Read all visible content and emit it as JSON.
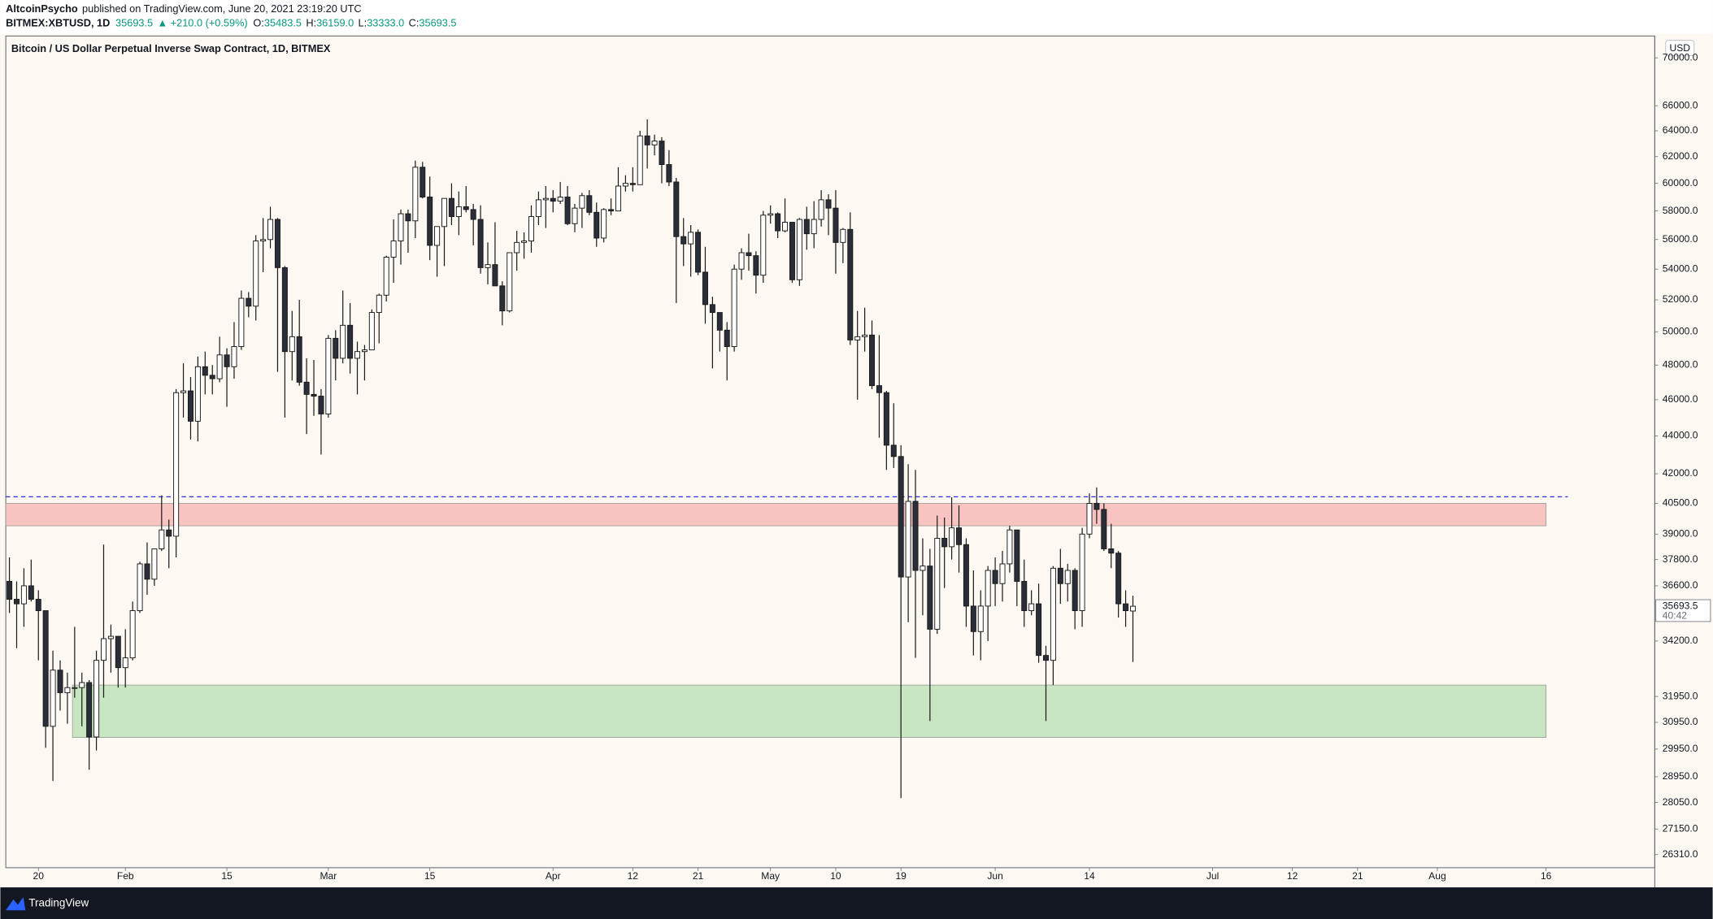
{
  "header": {
    "author": "AltcoinPsycho",
    "published": "published on TradingView.com, June 20, 2021 23:19:20 UTC",
    "symbol": "BITMEX:XBTUSD, 1D",
    "last": "35693.5",
    "change": "▲ +210.0 (+0.59%)",
    "o_key": "O:",
    "o": "35483.5",
    "h_key": "H:",
    "h": "36159.0",
    "l_key": "L:",
    "l": "33333.0",
    "c_key": "C:",
    "c": "35693.5"
  },
  "footer": {
    "brand": "TradingView"
  },
  "chart_data": {
    "type": "candlestick",
    "title": "Bitcoin / US Dollar Perpetual Inverse Swap Contract, 1D, BITMEX",
    "currency": "USD",
    "log_scale": true,
    "grid": false,
    "up_color": "#ffffff",
    "down_color": "#2a2e39",
    "wick_color": "#1a1a1a",
    "last_price_label": "35693.5",
    "countdown": "40:42",
    "xlim": [
      -0.5,
      227
    ],
    "ylim": [
      25890,
      71900
    ],
    "xticks": [
      {
        "value": 4,
        "label": "20"
      },
      {
        "value": 16,
        "label": "Feb"
      },
      {
        "value": 30,
        "label": "15"
      },
      {
        "value": 44,
        "label": "Mar"
      },
      {
        "value": 58,
        "label": "15"
      },
      {
        "value": 75,
        "label": "Apr"
      },
      {
        "value": 86,
        "label": "12"
      },
      {
        "value": 95,
        "label": "21"
      },
      {
        "value": 105,
        "label": "May"
      },
      {
        "value": 114,
        "label": "10"
      },
      {
        "value": 123,
        "label": "19"
      },
      {
        "value": 136,
        "label": "Jun"
      },
      {
        "value": 149,
        "label": "14"
      },
      {
        "value": 166,
        "label": "Jul"
      },
      {
        "value": 177,
        "label": "12"
      },
      {
        "value": 186,
        "label": "21"
      },
      {
        "value": 197,
        "label": "Aug"
      },
      {
        "value": 212,
        "label": "16"
      }
    ],
    "yticks": [
      {
        "value": 70000,
        "label": "70000.0"
      },
      {
        "value": 66000,
        "label": "66000.0"
      },
      {
        "value": 64000,
        "label": "64000.0"
      },
      {
        "value": 62000,
        "label": "62000.0"
      },
      {
        "value": 60000,
        "label": "60000.0"
      },
      {
        "value": 58000,
        "label": "58000.0"
      },
      {
        "value": 56000,
        "label": "56000.0"
      },
      {
        "value": 54000,
        "label": "54000.0"
      },
      {
        "value": 52000,
        "label": "52000.0"
      },
      {
        "value": 50000,
        "label": "50000.0"
      },
      {
        "value": 48000,
        "label": "48000.0"
      },
      {
        "value": 46000,
        "label": "46000.0"
      },
      {
        "value": 44000,
        "label": "44000.0"
      },
      {
        "value": 42000,
        "label": "42000.0"
      },
      {
        "value": 40500,
        "label": "40500.0"
      },
      {
        "value": 39000,
        "label": "39000.0"
      },
      {
        "value": 37800,
        "label": "37800.0"
      },
      {
        "value": 36600,
        "label": "36600.0"
      },
      {
        "value": 34200,
        "label": "34200.0"
      },
      {
        "value": 31950,
        "label": "31950.0"
      },
      {
        "value": 30950,
        "label": "30950.0"
      },
      {
        "value": 29950,
        "label": "29950.0"
      },
      {
        "value": 28950,
        "label": "28950.0"
      },
      {
        "value": 28050,
        "label": "28050.0"
      },
      {
        "value": 27150,
        "label": "27150.0"
      },
      {
        "value": 26310,
        "label": "26310.0"
      }
    ],
    "zones": [
      {
        "x": [
          -0.5,
          212
        ],
        "y": [
          39400,
          40500
        ],
        "color": "#f8c4c1"
      },
      {
        "x": [
          8.7,
          212
        ],
        "y": [
          30380,
          32400
        ],
        "color": "#c8e6c2"
      }
    ],
    "hline": {
      "value": 40830,
      "x": [
        -0.5,
        215
      ],
      "color": "#2f2fd8"
    },
    "open": [
      36800,
      36000,
      35800,
      36600,
      36000,
      35500,
      30800,
      33000,
      32100,
      32300,
      32300,
      32500,
      30400,
      33400,
      34300,
      34400,
      33100,
      33500,
      35500,
      37600,
      36900,
      38300,
      39200,
      38900,
      46400,
      46500,
      44800,
      47900,
      47400,
      47200,
      48600,
      47900,
      49100,
      52100,
      51600,
      55900,
      56000,
      57400,
      54100,
      48800,
      49700,
      47000,
      46300,
      46200,
      45200,
      49600,
      48400,
      50400,
      48400,
      48800,
      48900,
      51200,
      52300,
      54800,
      55900,
      57800,
      57300,
      61200,
      59000,
      55600,
      56900,
      58900,
      57600,
      58300,
      58100,
      57400,
      54100,
      54300,
      52900,
      51300,
      55100,
      55800,
      55900,
      57600,
      58800,
      58900,
      58700,
      59000,
      57100,
      58200,
      59100,
      57900,
      56100,
      58100,
      58000,
      59800,
      60000,
      59900,
      63600,
      62900,
      63200,
      61400,
      60100,
      56200,
      55700,
      56500,
      53800,
      51700,
      51200,
      50100,
      49100,
      54000,
      55100,
      54900,
      53600,
      57700,
      57800,
      56600,
      57200,
      53300,
      57400,
      56400,
      57400,
      58800,
      58200,
      55800,
      56700,
      49500,
      49700,
      49800,
      46800,
      46400,
      43500,
      42900,
      37000,
      40600,
      37300,
      37500,
      34700,
      38800,
      38400,
      39300,
      38500,
      35700,
      34600,
      35700,
      37300,
      36700,
      37600,
      39200,
      36800,
      35500,
      35800,
      33600,
      33400,
      37400,
      36700,
      37300,
      35500,
      39000,
      40500,
      40200,
      38300,
      38100,
      35800,
      35483.5
    ],
    "high": [
      37900,
      36800,
      37400,
      37800,
      36400,
      35500,
      33800,
      33400,
      32900,
      34800,
      32900,
      32600,
      33800,
      38500,
      34900,
      34400,
      34700,
      35900,
      37700,
      38600,
      38300,
      40900,
      39700,
      46600,
      48100,
      47300,
      48500,
      48800,
      48000,
      49700,
      49000,
      50600,
      52600,
      52500,
      56300,
      57500,
      58300,
      57500,
      54200,
      51300,
      52000,
      48400,
      48300,
      46600,
      49800,
      50100,
      52600,
      51800,
      49400,
      49200,
      51400,
      52400,
      54900,
      57400,
      58100,
      58100,
      61700,
      61600,
      60500,
      56900,
      58900,
      60000,
      59400,
      59800,
      58500,
      58400,
      55800,
      57200,
      53200,
      55100,
      56600,
      56500,
      58400,
      59400,
      59800,
      59500,
      60100,
      59800,
      58500,
      59300,
      59500,
      58600,
      58200,
      58900,
      61200,
      60600,
      61200,
      64000,
      64900,
      63700,
      63500,
      62500,
      60400,
      57500,
      57000,
      56700,
      55500,
      52200,
      51200,
      50600,
      54300,
      55400,
      56400,
      55200,
      58000,
      58400,
      57900,
      58900,
      57200,
      57500,
      58300,
      58700,
      59500,
      59200,
      59500,
      56800,
      57900,
      51300,
      51500,
      50700,
      49800,
      46500,
      45800,
      43500,
      42500,
      42200,
      38800,
      38300,
      39900,
      39800,
      40800,
      40400,
      38800,
      37300,
      36400,
      37500,
      37900,
      38200,
      39400,
      39200,
      37800,
      36400,
      36700,
      34000,
      37500,
      38300,
      37600,
      37400,
      39300,
      41000,
      41300,
      40500,
      39500,
      38200,
      36400,
      36159
    ],
    "low": [
      35400,
      33900,
      34800,
      35900,
      33400,
      30000,
      28800,
      31400,
      30900,
      31900,
      30800,
      29200,
      29900,
      31900,
      32900,
      32300,
      32300,
      33400,
      35400,
      36200,
      36600,
      38200,
      37400,
      37900,
      45000,
      43800,
      43700,
      46300,
      46300,
      47000,
      45600,
      47200,
      48900,
      50900,
      50700,
      53800,
      55400,
      47600,
      45000,
      47100,
      46800,
      44100,
      45100,
      43000,
      45000,
      47100,
      48100,
      47500,
      46300,
      47100,
      48900,
      49300,
      51900,
      53100,
      54300,
      55100,
      56100,
      58900,
      54600,
      53500,
      54200,
      57000,
      56300,
      57900,
      55600,
      53700,
      53000,
      52900,
      50400,
      51200,
      53900,
      54700,
      55100,
      57000,
      56800,
      57900,
      58500,
      57000,
      56500,
      56800,
      57700,
      55500,
      55800,
      57700,
      58000,
      59400,
      59400,
      59900,
      61100,
      62100,
      60000,
      59800,
      51800,
      54200,
      53500,
      53600,
      50500,
      47800,
      48800,
      47100,
      48800,
      53300,
      53900,
      52400,
      53100,
      57100,
      56100,
      56500,
      53100,
      52900,
      55300,
      55400,
      56900,
      56300,
      53700,
      54400,
      49200,
      46000,
      48800,
      46600,
      43900,
      42200,
      42300,
      28200,
      35000,
      33500,
      35300,
      31000,
      34500,
      36500,
      37800,
      37200,
      34800,
      33600,
      33400,
      34200,
      35700,
      35900,
      37200,
      35700,
      34800,
      35300,
      33300,
      31000,
      32400,
      35800,
      35900,
      34700,
      34800,
      38800,
      39500,
      38200,
      37400,
      35200,
      34800,
      33333
    ],
    "close": [
      36000,
      35800,
      36600,
      36000,
      35500,
      30800,
      33000,
      32100,
      32300,
      32300,
      32500,
      30400,
      33400,
      34300,
      34400,
      33100,
      33500,
      35500,
      37600,
      36900,
      38300,
      39200,
      38900,
      46400,
      46500,
      44800,
      47900,
      47400,
      47200,
      48600,
      47900,
      49100,
      52100,
      51600,
      55900,
      56000,
      57400,
      54100,
      48800,
      49700,
      47000,
      46300,
      46200,
      45200,
      49600,
      48400,
      50400,
      48400,
      48800,
      48900,
      51200,
      52300,
      54800,
      55900,
      57800,
      57300,
      61200,
      59000,
      55600,
      56900,
      58900,
      57600,
      58300,
      58100,
      57400,
      54100,
      54300,
      52900,
      51300,
      55100,
      55800,
      55900,
      57600,
      58800,
      58900,
      58700,
      59000,
      57100,
      58200,
      59100,
      57900,
      56100,
      58100,
      58000,
      59800,
      60000,
      59900,
      63600,
      62900,
      63200,
      61400,
      60100,
      56200,
      55700,
      56500,
      53800,
      51700,
      51200,
      50100,
      49100,
      54000,
      55100,
      54900,
      53600,
      57700,
      57800,
      56600,
      57200,
      53300,
      57400,
      56400,
      57400,
      58800,
      58200,
      55800,
      56700,
      49500,
      49700,
      49800,
      46800,
      46400,
      43500,
      42900,
      37000,
      40600,
      37300,
      37500,
      34700,
      38800,
      38400,
      39300,
      38500,
      35700,
      34600,
      35700,
      37300,
      36700,
      37600,
      39200,
      36800,
      35500,
      35800,
      33600,
      33400,
      37400,
      36700,
      37300,
      35500,
      39000,
      40500,
      40200,
      38300,
      38100,
      35800,
      35500,
      35693.5
    ]
  }
}
